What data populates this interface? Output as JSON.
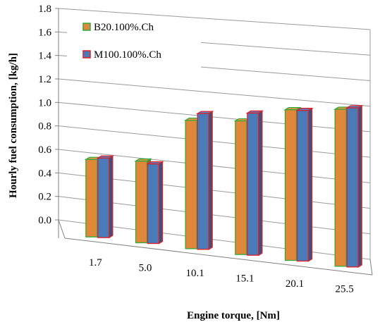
{
  "chart_data": {
    "type": "bar",
    "categories": [
      "1.7",
      "5.0",
      "10.1",
      "15.1",
      "20.1",
      "25.5"
    ],
    "series": [
      {
        "name": "B20.100%.Ch",
        "values": [
          0.73,
          0.77,
          1.21,
          1.26,
          1.42,
          1.48
        ]
      },
      {
        "name": "M100.100%.Ch",
        "values": [
          0.75,
          0.75,
          1.28,
          1.34,
          1.42,
          1.5
        ]
      }
    ],
    "xlabel": "Engine torque, [Nm]",
    "ylabel": "Hourly fuel consumption, [kg/h]",
    "ylim": [
      0,
      1.8
    ],
    "y_ticks": [
      "0.0",
      "0.2",
      "0.4",
      "0.6",
      "0.8",
      "1.0",
      "1.2",
      "1.4",
      "1.6",
      "1.8"
    ],
    "grid": true,
    "legend_position": "top-left",
    "colors": {
      "B20.100%.Ch": {
        "fill": "#E0883A",
        "stroke": "#2EAA3E"
      },
      "M100.100%.Ch": {
        "fill": "#4A7AB8",
        "stroke": "#E01F26"
      }
    }
  }
}
